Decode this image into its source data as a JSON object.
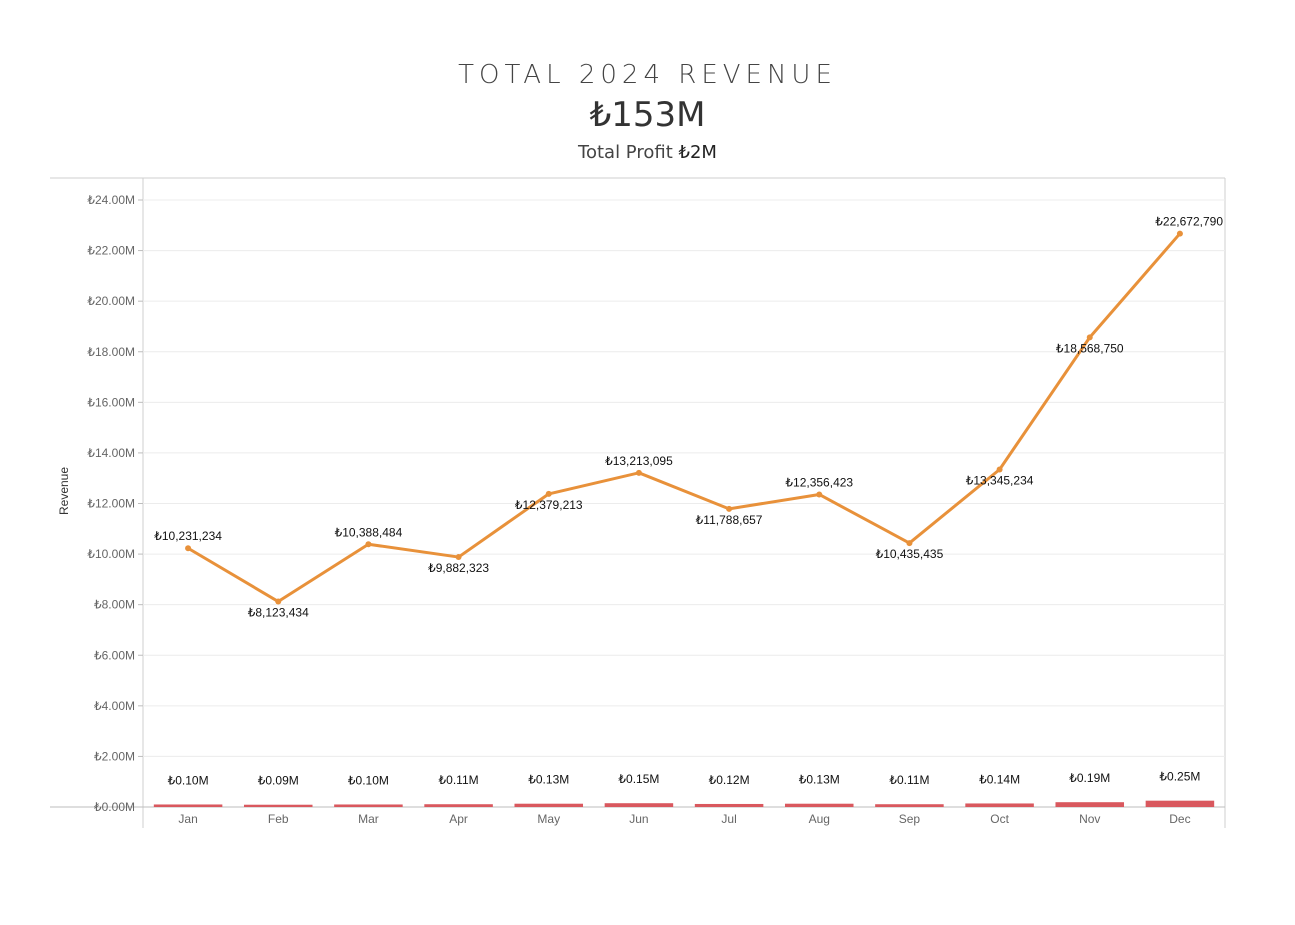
{
  "header": {
    "title": "TOTAL 2024 REVENUE",
    "total_revenue": "₺153M",
    "profit_label": "Total Profit",
    "profit_value": "₺2M"
  },
  "colors": {
    "revenue_line": "#E8913A",
    "profit_bar": "#D9585E",
    "grid": "#ECECEC",
    "axis": "#CFCFCF"
  },
  "chart_data": {
    "type": "line",
    "categories": [
      "Jan",
      "Feb",
      "Mar",
      "Apr",
      "May",
      "Jun",
      "Jul",
      "Aug",
      "Sep",
      "Oct",
      "Nov",
      "Dec"
    ],
    "ylabel": "Revenue",
    "ylim": [
      0,
      24000000
    ],
    "yticks": [
      "₺0.00M",
      "₺2.00M",
      "₺4.00M",
      "₺6.00M",
      "₺8.00M",
      "₺10.00M",
      "₺12.00M",
      "₺14.00M",
      "₺16.00M",
      "₺18.00M",
      "₺20.00M",
      "₺22.00M",
      "₺24.00M"
    ],
    "grid": true,
    "series": [
      {
        "type": "line",
        "values": [
          10231234,
          8123434,
          10388484,
          9882323,
          12379213,
          13213095,
          11788657,
          12356423,
          10435435,
          13345234,
          18568750,
          22672790
        ],
        "labels": [
          "₺10,231,234",
          "₺8,123,434",
          "₺10,388,484",
          "₺9,882,323",
          "₺12,379,213",
          "₺13,213,095",
          "₺11,788,657",
          "₺12,356,423",
          "₺10,435,435",
          "₺13,345,234",
          "₺18,568,750",
          "₺22,672,790"
        ]
      },
      {
        "type": "bar",
        "values": [
          100000,
          90000,
          100000,
          110000,
          130000,
          150000,
          120000,
          130000,
          110000,
          140000,
          190000,
          250000
        ],
        "labels": [
          "₺0.10M",
          "₺0.09M",
          "₺0.10M",
          "₺0.11M",
          "₺0.13M",
          "₺0.15M",
          "₺0.12M",
          "₺0.13M",
          "₺0.11M",
          "₺0.14M",
          "₺0.19M",
          "₺0.25M"
        ]
      }
    ]
  }
}
